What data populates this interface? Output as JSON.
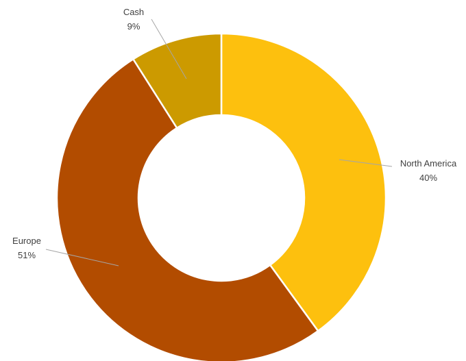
{
  "chart_data": {
    "type": "pie",
    "donut": true,
    "slices": [
      {
        "label": "North America",
        "value": 40,
        "value_label": "40%",
        "color": "#fdc00e"
      },
      {
        "label": "Europe",
        "value": 51,
        "value_label": "51%",
        "color": "#b24c00"
      },
      {
        "label": "Cash",
        "value": 9,
        "value_label": "9%",
        "color": "#cc9a00"
      }
    ],
    "start_angle": "12 o'clock",
    "direction": "clockwise",
    "title": "",
    "legend": "none",
    "slice_separator_color": "#ffffff"
  }
}
